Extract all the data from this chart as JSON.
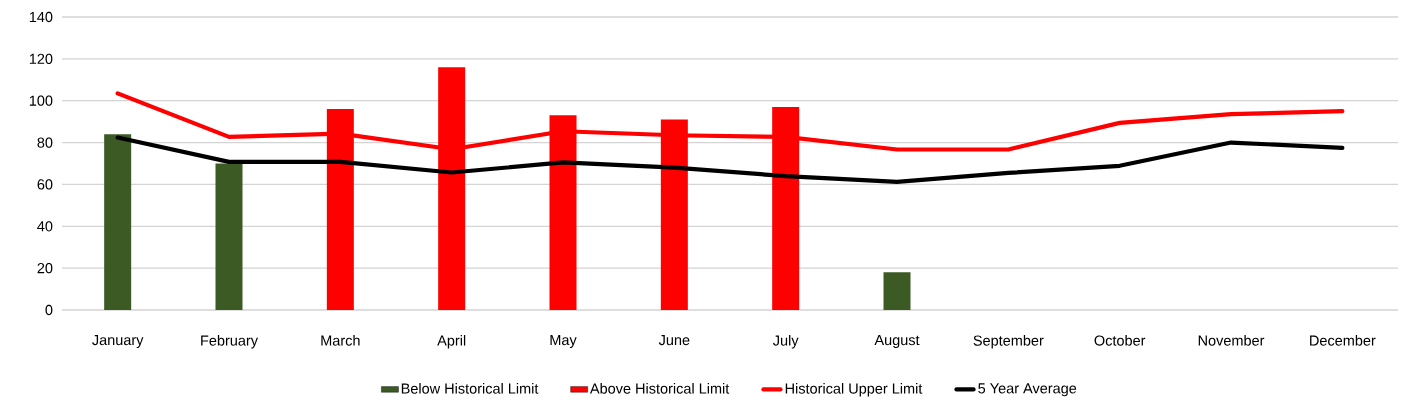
{
  "chart_data": {
    "type": "bar",
    "categories": [
      "January",
      "February",
      "March",
      "April",
      "May",
      "June",
      "July",
      "August",
      "September",
      "October",
      "November",
      "December"
    ],
    "series": [
      {
        "name": "Below Historical Limit",
        "color": "#3c5a24",
        "values": [
          84,
          70,
          null,
          null,
          null,
          null,
          null,
          18,
          null,
          null,
          null,
          null
        ]
      },
      {
        "name": "Above Historical Limit",
        "color": "#ff0000",
        "values": [
          null,
          null,
          96,
          116,
          93,
          91,
          97,
          null,
          null,
          null,
          null,
          null
        ]
      },
      {
        "name": "Historical Upper Limit",
        "type": "line",
        "color": "#ff0000",
        "values": [
          103.5,
          82.7,
          84.3,
          76.8,
          85.4,
          83.5,
          82.7,
          76.7,
          76.7,
          89.4,
          93.6,
          95
        ]
      },
      {
        "name": "5 Year Average",
        "type": "line",
        "color": "#000000",
        "values": [
          82.4,
          70.8,
          70.8,
          65.7,
          70.5,
          68,
          64,
          61.2,
          65.5,
          68.9,
          80,
          77.5
        ]
      }
    ],
    "ylim": [
      0,
      140
    ],
    "yticks": [
      0,
      20,
      40,
      60,
      80,
      100,
      120,
      140
    ],
    "grid": "y",
    "legend": "bottom",
    "marker": "none"
  }
}
